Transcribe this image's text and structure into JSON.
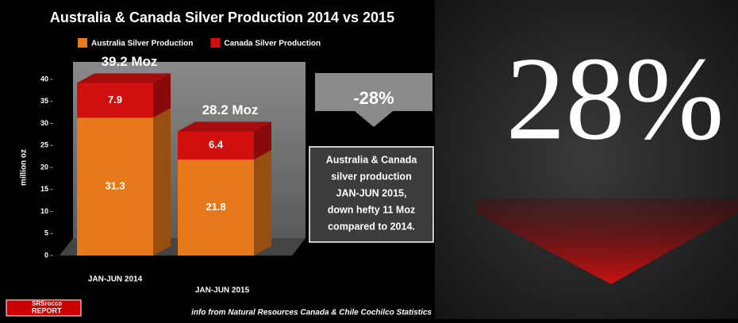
{
  "chart_data": {
    "type": "bar",
    "stacked": true,
    "title": "Australia & Canada Silver Production 2014 vs 2015",
    "y_label": "million oz",
    "categories": [
      "JAN-JUN 2014",
      "JAN-JUN 2015"
    ],
    "series": [
      {
        "name": "Australia Silver Production",
        "color": "#e8791a",
        "values": [
          31.3,
          21.8
        ]
      },
      {
        "name": "Canada Silver Production",
        "color": "#d10f0f",
        "values": [
          7.9,
          6.4
        ]
      }
    ],
    "total_labels": [
      "39.2 Moz",
      "28.2 Moz"
    ],
    "ylim": [
      0,
      40
    ],
    "yticks": [
      0,
      5,
      10,
      15,
      20,
      25,
      30,
      35,
      40
    ],
    "annotation": "-28%",
    "note_lines": [
      "Australia & Canada",
      "silver production",
      "JAN-JUN 2015,",
      "down hefty 11 Moz",
      "compared to 2014."
    ],
    "source": "info from Natural Resources Canada & Chile Cochilco Statistics"
  },
  "logo": [
    "SRSrocco",
    "REPORT"
  ],
  "banner": "28%"
}
